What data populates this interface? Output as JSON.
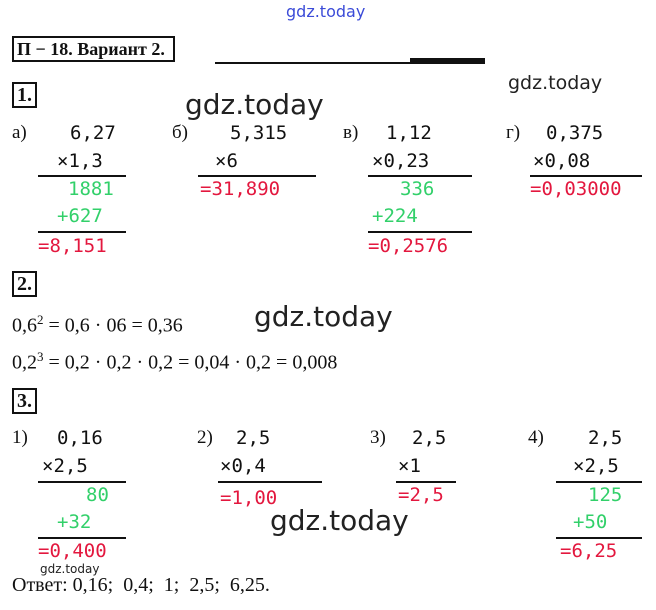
{
  "watermarks": [
    "gdz.today",
    "gdz.today",
    "gdz.today",
    "gdz.today",
    "gdz.today",
    "gdz.today"
  ],
  "header": "П − 18. Вариант 2.",
  "task1": {
    "number": "1.",
    "problems": [
      {
        "label": "а)",
        "a": "6,27",
        "b": "×1,3",
        "partials": [
          "1881",
          "+627"
        ],
        "result": "=8,151"
      },
      {
        "label": "б)",
        "a": "5,315",
        "b": "×6",
        "result": "=31,890"
      },
      {
        "label": "в)",
        "a": "1,12",
        "b": "×0,23",
        "partials": [
          "336",
          "+224"
        ],
        "result": "=0,2576"
      },
      {
        "label": "г)",
        "a": "0,375",
        "b": "×0,08",
        "result": "=0,03000"
      }
    ]
  },
  "task2": {
    "number": "2.",
    "lines": [
      {
        "base": "0,6",
        "exp": "2",
        "rest": " = 0,6 · 06 = 0,36"
      },
      {
        "base": "0,2",
        "exp": "3",
        "rest": " = 0,2 · 0,2 · 0,2 = 0,04 · 0,2 = 0,008"
      }
    ]
  },
  "task3": {
    "number": "3.",
    "problems": [
      {
        "label": "1)",
        "a": "0,16",
        "b": "×2,5",
        "partials": [
          "80",
          "+32"
        ],
        "result": "=0,400"
      },
      {
        "label": "2)",
        "a": "2,5",
        "b": "×0,4",
        "result": "=1,00"
      },
      {
        "label": "3)",
        "a": "2,5",
        "b": "×1",
        "result": "=2,5"
      },
      {
        "label": "4)",
        "a": "2,5",
        "b": "×2,5",
        "partials": [
          "125",
          "+50"
        ],
        "result": "=6,25"
      }
    ],
    "answer": "Ответ: 0,16;  0,4;  1;  2,5;  6,25."
  }
}
